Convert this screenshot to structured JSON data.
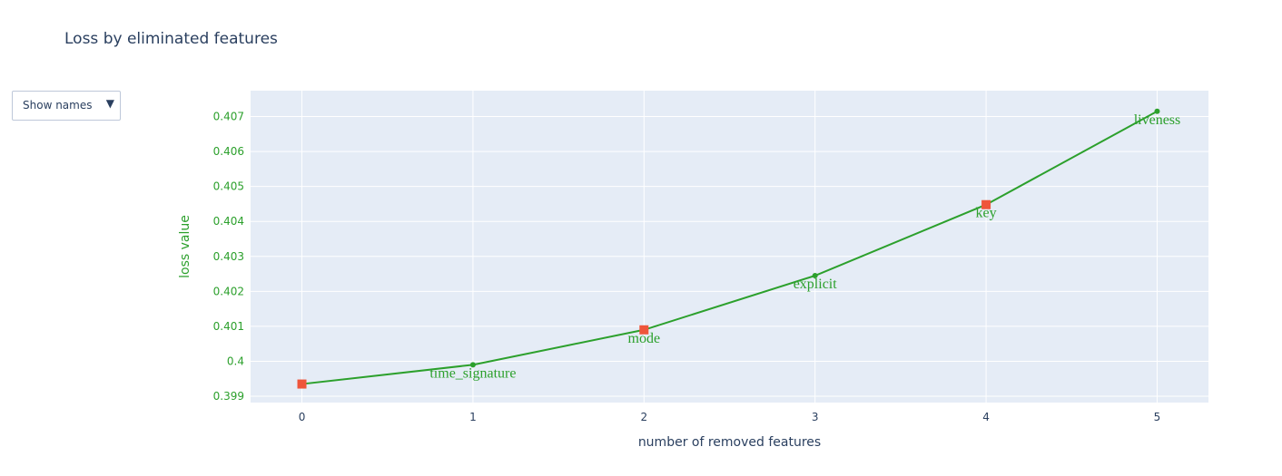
{
  "chart_data": {
    "type": "line",
    "title": "Loss by eliminated features",
    "xlabel": "number of removed features",
    "ylabel": "loss value",
    "x": [
      0,
      1,
      2,
      3,
      4,
      5
    ],
    "y": [
      0.39935,
      0.3999,
      0.4009,
      0.40245,
      0.40448,
      0.40715
    ],
    "point_labels": [
      "",
      "time_signature",
      "mode",
      "explicit",
      "key",
      "liveness"
    ],
    "highlighted_x": [
      0,
      2,
      4
    ],
    "xlim": [
      -0.3,
      5.3
    ],
    "ylim": [
      0.39882,
      0.40774
    ],
    "x_ticks": [
      0,
      1,
      2,
      3,
      4,
      5
    ],
    "y_ticks": [
      0.399,
      0.4,
      0.401,
      0.402,
      0.403,
      0.404,
      0.405,
      0.406,
      0.407
    ],
    "y_tick_labels": [
      "0.399",
      "0.4",
      "0.401",
      "0.402",
      "0.403",
      "0.404",
      "0.405",
      "0.406",
      "0.407"
    ],
    "grid": true,
    "colors": {
      "line": "#2ca02c",
      "highlight": "#ef553b",
      "plot_bg": "#e5ecf6",
      "grid": "#ffffff",
      "text": "#2a3f5f"
    }
  },
  "controls": {
    "dropdown_label": "Show names",
    "dropdown_arrow": "▼"
  }
}
